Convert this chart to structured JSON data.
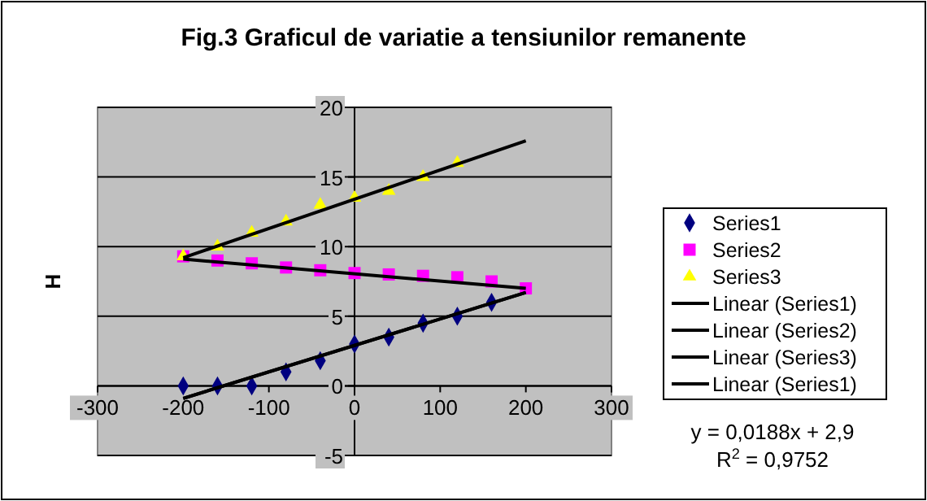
{
  "chart_data": {
    "type": "scatter",
    "title": "Fig.3 Graficul de variatie a tensiunilor remanente",
    "ylabel": "H",
    "xlim": [
      -300,
      300
    ],
    "xticks": [
      -300,
      -200,
      -100,
      0,
      100,
      200,
      300
    ],
    "ylim": [
      -5,
      20
    ],
    "yticks": [
      -5,
      0,
      5,
      10,
      15,
      20
    ],
    "grid": "y",
    "legend": "right",
    "series": [
      {
        "name": "Series1",
        "color": "#000080",
        "marker": "diamond",
        "x": [
          -200,
          -160,
          -120,
          -80,
          -40,
          0,
          40,
          80,
          120,
          160
        ],
        "values": [
          0,
          0,
          0,
          1,
          1.8,
          3,
          3.5,
          4.5,
          5,
          6
        ]
      },
      {
        "name": "Series2",
        "color": "#ff00ff",
        "marker": "square",
        "x": [
          -200,
          -160,
          -120,
          -80,
          -40,
          0,
          40,
          80,
          120,
          160,
          200
        ],
        "values": [
          9.3,
          9,
          8.8,
          8.5,
          8.3,
          8.1,
          8,
          7.9,
          7.8,
          7.5,
          7
        ]
      },
      {
        "name": "Series3",
        "color": "#ffff00",
        "marker": "triangle",
        "x": [
          -200,
          -160,
          -120,
          -80,
          -40,
          0,
          40,
          80,
          120
        ],
        "values": [
          9.3,
          10,
          11,
          11.8,
          13,
          13.5,
          14,
          15,
          16
        ]
      },
      {
        "name": "Linear (Series1)",
        "type": "line",
        "color": "#000000",
        "marker": "none",
        "x": [
          -200,
          200
        ],
        "values": [
          -0.9,
          6.7
        ]
      },
      {
        "name": "Linear (Series2)",
        "type": "line",
        "color": "#000000",
        "marker": "none",
        "x": [
          -200,
          200
        ],
        "values": [
          9.1,
          7
        ]
      },
      {
        "name": "Linear (Series3)",
        "type": "line",
        "color": "#000000",
        "marker": "none",
        "x": [
          -200,
          200
        ],
        "values": [
          9.2,
          17.6
        ]
      },
      {
        "name": "Linear (Series1)",
        "type": "line",
        "color": "#000000",
        "marker": "none",
        "x": [
          -200,
          200
        ],
        "values": [
          -0.9,
          6.7
        ]
      }
    ],
    "annotations": [
      "y = 0,0188x + 2,9",
      "R$^{2}$ = 0,9752"
    ]
  }
}
